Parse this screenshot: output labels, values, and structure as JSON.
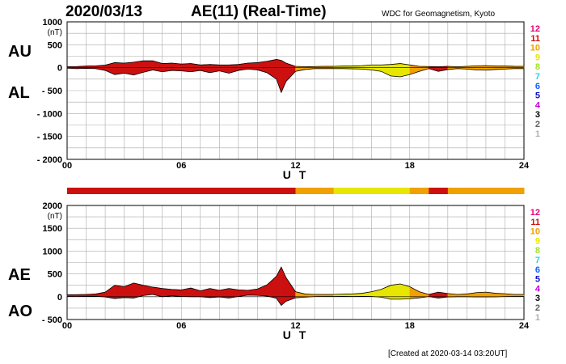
{
  "header": {
    "date": "2020/03/13",
    "title": "AE(11) (Real-Time)",
    "source": "WDC for Geomagnetism, Kyoto"
  },
  "footer": {
    "created": "[Created at 2020-03-14 03:20UT]"
  },
  "colors": {
    "12": "#e8007a",
    "11": "#cc1010",
    "10": "#f0a000",
    "9": "#e6e600",
    "8": "#a0e030",
    "7": "#30d0e8",
    "6": "#1060ff",
    "5": "#1010c0",
    "4": "#c000e0",
    "3": "#000000",
    "2": "#606060",
    "1": "#b0b0b0",
    "grid": "#aaaaaa"
  },
  "chart_data": [
    {
      "type": "area",
      "panel": "top",
      "series_labels": [
        "AU",
        "AL"
      ],
      "ylabel": "(nT)",
      "ylim": [
        -2000,
        1000
      ],
      "yticks": [
        "1000",
        "500",
        "0",
        "- 500",
        "- 1000",
        "- 1500",
        "- 2000"
      ],
      "xlabel": "U T",
      "xlim": [
        0,
        24
      ],
      "xticks": [
        "00",
        "06",
        "12",
        "18",
        "24"
      ],
      "grid": true,
      "level_scale": [
        "12",
        "11",
        "10",
        "9",
        "8",
        "7",
        "6",
        "5",
        "4",
        "3",
        "2",
        "1"
      ],
      "x": [
        0,
        0.5,
        1,
        1.5,
        2,
        2.5,
        3,
        3.5,
        4,
        4.5,
        5,
        5.5,
        6,
        6.5,
        7,
        7.5,
        8,
        8.5,
        9,
        9.5,
        10,
        10.5,
        11,
        11.25,
        11.5,
        12,
        12.5,
        13,
        13.5,
        14,
        14.5,
        15,
        15.5,
        16,
        16.5,
        17,
        17.5,
        18,
        18.5,
        19,
        19.5,
        20,
        20.5,
        21,
        21.5,
        22,
        22.5,
        23,
        23.5,
        24
      ],
      "au": [
        20,
        25,
        35,
        40,
        55,
        110,
        100,
        120,
        150,
        150,
        90,
        100,
        80,
        90,
        60,
        70,
        60,
        60,
        70,
        100,
        110,
        140,
        180,
        160,
        100,
        30,
        20,
        25,
        30,
        30,
        35,
        35,
        45,
        60,
        60,
        70,
        90,
        60,
        30,
        25,
        20,
        30,
        20,
        30,
        40,
        45,
        35,
        35,
        30,
        30
      ],
      "al": [
        -10,
        -20,
        -15,
        -20,
        -60,
        -150,
        -120,
        -160,
        -100,
        -50,
        -90,
        -60,
        -70,
        -90,
        -60,
        -110,
        -70,
        -120,
        -60,
        -30,
        -50,
        -110,
        -250,
        -540,
        -300,
        -80,
        -40,
        -20,
        -20,
        -20,
        -20,
        -25,
        -30,
        -50,
        -80,
        -180,
        -200,
        -150,
        -80,
        -20,
        -80,
        -40,
        -20,
        -30,
        -50,
        -55,
        -40,
        -30,
        -20,
        -20
      ]
    },
    {
      "type": "heatmap",
      "panel": "activity-bar",
      "x": [
        0,
        2,
        4,
        6,
        8,
        10,
        12,
        13,
        14,
        16,
        18,
        19,
        20,
        22,
        24
      ],
      "levels": [
        11,
        11,
        11,
        11,
        11,
        11,
        10,
        10,
        9,
        9,
        10,
        11,
        10,
        10,
        10
      ]
    },
    {
      "type": "area",
      "panel": "bottom",
      "series_labels": [
        "AE",
        "AO"
      ],
      "ylabel": "(nT)",
      "ylim": [
        -500,
        2000
      ],
      "yticks": [
        "2000",
        "1500",
        "1000",
        "500",
        "0",
        "- 500"
      ],
      "xlabel": "U T",
      "xlim": [
        0,
        24
      ],
      "xticks": [
        "00",
        "06",
        "12",
        "18",
        "24"
      ],
      "grid": true,
      "level_scale": [
        "12",
        "11",
        "10",
        "9",
        "8",
        "7",
        "6",
        "5",
        "4",
        "3",
        "2",
        "1"
      ],
      "x": [
        0,
        0.5,
        1,
        1.5,
        2,
        2.5,
        3,
        3.5,
        4,
        4.5,
        5,
        5.5,
        6,
        6.5,
        7,
        7.5,
        8,
        8.5,
        9,
        9.5,
        10,
        10.5,
        11,
        11.25,
        11.5,
        12,
        12.5,
        13,
        13.5,
        14,
        14.5,
        15,
        15.5,
        16,
        16.5,
        17,
        17.5,
        18,
        18.5,
        19,
        19.5,
        20,
        20.5,
        21,
        21.5,
        22,
        22.5,
        23,
        23.5,
        24
      ],
      "ae": [
        40,
        45,
        50,
        60,
        100,
        250,
        220,
        300,
        250,
        210,
        180,
        160,
        150,
        190,
        130,
        180,
        140,
        180,
        150,
        140,
        170,
        260,
        450,
        650,
        420,
        110,
        60,
        50,
        50,
        50,
        55,
        60,
        75,
        110,
        160,
        250,
        280,
        220,
        110,
        50,
        100,
        70,
        50,
        60,
        90,
        100,
        75,
        65,
        50,
        50
      ],
      "ao": [
        5,
        3,
        10,
        10,
        -5,
        -40,
        -20,
        -30,
        25,
        50,
        0,
        20,
        5,
        0,
        0,
        -20,
        -5,
        -30,
        5,
        35,
        30,
        15,
        -35,
        -190,
        -100,
        -25,
        -10,
        3,
        5,
        5,
        8,
        5,
        8,
        5,
        -10,
        -55,
        -55,
        -45,
        -25,
        3,
        -30,
        -5,
        0,
        0,
        -5,
        -5,
        -3,
        3,
        5,
        5
      ]
    }
  ]
}
